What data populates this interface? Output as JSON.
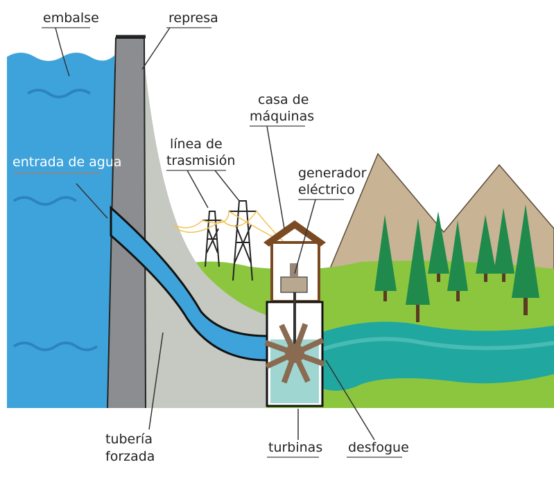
{
  "labels": [
    {
      "lines": [
        "embalse"
      ]
    },
    {
      "lines": [
        "represa"
      ]
    },
    {
      "lines": [
        "casa de",
        "máquinas"
      ]
    },
    {
      "lines": [
        "línea de",
        "trasmisión"
      ]
    },
    {
      "lines": [
        "generador",
        "eléctrico"
      ]
    },
    {
      "lines": [
        "entrada de agua"
      ]
    },
    {
      "lines": [
        "tubería",
        "forzada"
      ]
    },
    {
      "lines": [
        "turbinas"
      ]
    },
    {
      "lines": [
        "desfogue"
      ]
    }
  ]
}
